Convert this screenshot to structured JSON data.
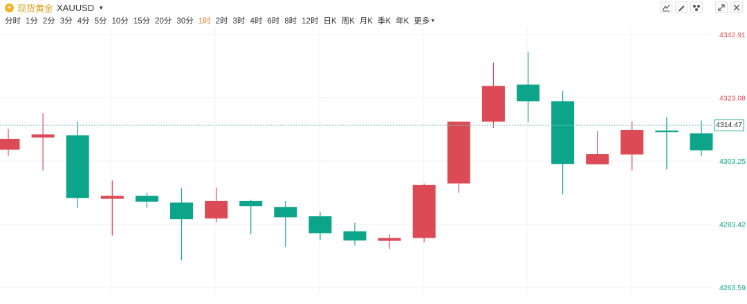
{
  "header": {
    "symbol_name": "现货黄金",
    "symbol_code": "XAUUSD",
    "gold_icon": "coin-icon"
  },
  "intervals": [
    {
      "label": "分时",
      "active": false
    },
    {
      "label": "1分",
      "active": false
    },
    {
      "label": "2分",
      "active": false
    },
    {
      "label": "3分",
      "active": false
    },
    {
      "label": "4分",
      "active": false
    },
    {
      "label": "5分",
      "active": false
    },
    {
      "label": "10分",
      "active": false
    },
    {
      "label": "15分",
      "active": false
    },
    {
      "label": "20分",
      "active": false
    },
    {
      "label": "30分",
      "active": false
    },
    {
      "label": "1时",
      "active": true
    },
    {
      "label": "2时",
      "active": false
    },
    {
      "label": "3时",
      "active": false
    },
    {
      "label": "4时",
      "active": false
    },
    {
      "label": "6时",
      "active": false
    },
    {
      "label": "8时",
      "active": false
    },
    {
      "label": "12时",
      "active": false
    },
    {
      "label": "日K",
      "active": false
    },
    {
      "label": "周K",
      "active": false
    },
    {
      "label": "月K",
      "active": false
    },
    {
      "label": "季K",
      "active": false
    },
    {
      "label": "年K",
      "active": false
    },
    {
      "label": "更多",
      "active": false
    }
  ],
  "tools": [
    "line-tool-icon",
    "draw-tool-icon",
    "indicator-tool-icon",
    "fullscreen-icon",
    "close-icon"
  ],
  "colors": {
    "up": "#dc4b55",
    "down": "#0da58a",
    "grid": "#f0f0f0",
    "accent": "#ef7d3a"
  },
  "chart_data": {
    "type": "candlestick",
    "y_axis_ticks": [
      4342.91,
      4323.08,
      4303.25,
      4283.42,
      4263.59
    ],
    "ylim": [
      4263.59,
      4342.91
    ],
    "current_price": 4314.47,
    "candles": [
      {
        "open": 4306.8,
        "close": 4310.2,
        "high": 4313.3,
        "low": 4304.9
      },
      {
        "open": 4310.6,
        "close": 4311.6,
        "high": 4318.2,
        "low": 4300.3
      },
      {
        "open": 4311.3,
        "close": 4291.6,
        "high": 4315.6,
        "low": 4288.6
      },
      {
        "open": 4291.4,
        "close": 4292.3,
        "high": 4297.1,
        "low": 4279.9
      },
      {
        "open": 4292.3,
        "close": 4290.5,
        "high": 4293.3,
        "low": 4288.6
      },
      {
        "open": 4290.2,
        "close": 4285.0,
        "high": 4294.7,
        "low": 4272.1
      },
      {
        "open": 4285.2,
        "close": 4290.7,
        "high": 4294.9,
        "low": 4284.0
      },
      {
        "open": 4290.7,
        "close": 4289.1,
        "high": 4291.1,
        "low": 4280.3
      },
      {
        "open": 4288.8,
        "close": 4285.6,
        "high": 4290.7,
        "low": 4276.3
      },
      {
        "open": 4285.9,
        "close": 4280.6,
        "high": 4287.2,
        "low": 4278.5
      },
      {
        "open": 4281.2,
        "close": 4278.3,
        "high": 4283.9,
        "low": 4276.8
      },
      {
        "open": 4278.2,
        "close": 4279.1,
        "high": 4280.2,
        "low": 4275.7
      },
      {
        "open": 4279.1,
        "close": 4295.7,
        "high": 4296.2,
        "low": 4277.8
      },
      {
        "open": 4296.2,
        "close": 4315.6,
        "high": 4315.6,
        "low": 4293.3
      },
      {
        "open": 4315.6,
        "close": 4326.8,
        "high": 4334.1,
        "low": 4313.6
      },
      {
        "open": 4327.2,
        "close": 4322.0,
        "high": 4337.4,
        "low": 4315.4
      },
      {
        "open": 4322.0,
        "close": 4302.3,
        "high": 4325.2,
        "low": 4292.8
      },
      {
        "open": 4302.2,
        "close": 4305.4,
        "high": 4312.6,
        "low": 4302.2
      },
      {
        "open": 4305.3,
        "close": 4313.0,
        "high": 4315.6,
        "low": 4300.3
      },
      {
        "open": 4312.8,
        "close": 4312.3,
        "high": 4317.0,
        "low": 4300.6
      },
      {
        "open": 4311.9,
        "close": 4306.6,
        "high": 4315.9,
        "low": 4304.7
      }
    ]
  }
}
